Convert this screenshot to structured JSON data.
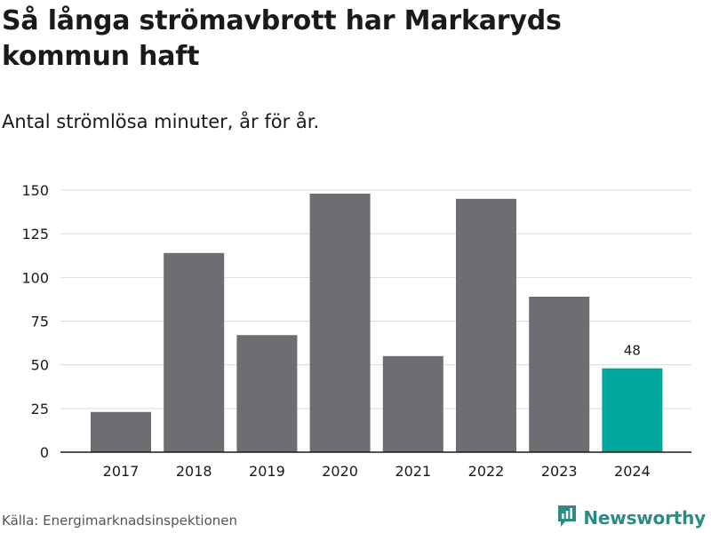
{
  "title": "Så långa strömavbrott har Markaryds kommun haft",
  "subtitle": "Antal strömlösa minuter, år för år.",
  "source": "Källa: Energimarknadsinspektionen",
  "brand": {
    "name": "Newsworthy",
    "icon": "newsworthy-logo-icon",
    "color": "#2a8c83"
  },
  "colors": {
    "bar": "#6e6d72",
    "highlight": "#00a79d",
    "grid": "#d9d9d9",
    "axis": "#1a1a1a"
  },
  "chart_data": {
    "type": "bar",
    "title": "Så långa strömavbrott har Markaryds kommun haft",
    "subtitle": "Antal strömlösa minuter, år för år.",
    "xlabel": "",
    "ylabel": "",
    "categories": [
      "2017",
      "2018",
      "2019",
      "2020",
      "2021",
      "2022",
      "2023",
      "2024"
    ],
    "values": [
      23,
      114,
      67,
      148,
      55,
      145,
      89,
      48
    ],
    "highlight_index": 7,
    "data_labels": [
      {
        "index": 7,
        "text": "48"
      }
    ],
    "ylim": [
      0,
      150
    ],
    "yticks": [
      0,
      25,
      50,
      75,
      100,
      125,
      150
    ],
    "grid": true,
    "legend": "none"
  }
}
